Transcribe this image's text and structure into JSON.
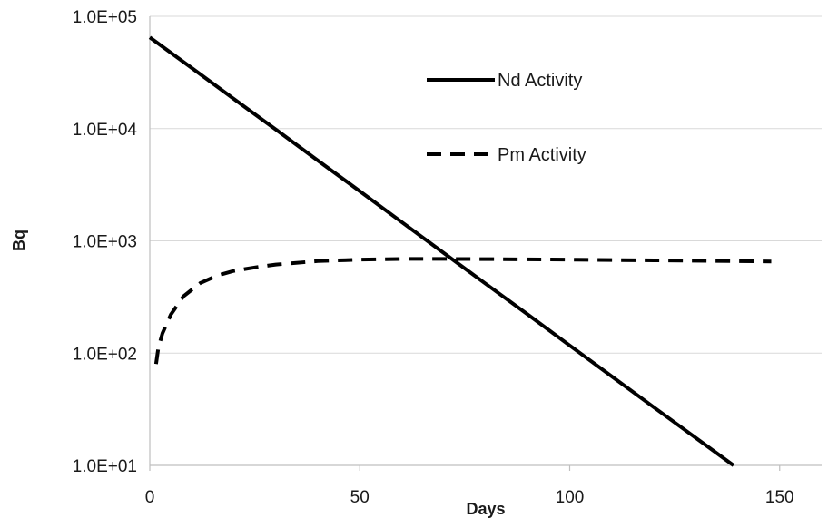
{
  "chart_data": {
    "type": "line",
    "title": "",
    "xlabel": "Days",
    "ylabel": "Bq",
    "xlim": [
      0,
      160
    ],
    "ylim": [
      10,
      100000
    ],
    "yscale": "log",
    "x_ticks": [
      0,
      50,
      100,
      150
    ],
    "x_tick_labels": [
      "0",
      "50",
      "100",
      "150"
    ],
    "y_ticks": [
      10,
      100,
      1000,
      10000,
      100000
    ],
    "y_tick_labels": [
      "1.0E+01",
      "1.0E+02",
      "1.0E+03",
      "1.0E+04",
      "1.0E+05"
    ],
    "grid": "horizontal",
    "legend_position": "top-right (inside)",
    "series": [
      {
        "name": "Nd Activity",
        "style": "solid",
        "color": "#000000",
        "x": [
          0,
          10,
          20,
          30,
          40,
          50,
          60,
          70,
          80,
          90,
          100,
          110,
          120,
          130,
          139
        ],
        "y": [
          65000,
          34600,
          18400,
          9800,
          5200,
          2770,
          1470,
          780,
          415,
          221,
          117,
          62,
          33,
          17.6,
          10
        ]
      },
      {
        "name": "Pm Activity",
        "style": "dashed",
        "color": "#000000",
        "x": [
          1.5,
          2,
          3,
          5,
          8,
          12,
          16,
          20,
          25,
          30,
          40,
          50,
          60,
          70,
          80,
          100,
          120,
          148
        ],
        "y": [
          80,
          110,
          150,
          220,
          320,
          420,
          490,
          540,
          580,
          615,
          660,
          680,
          690,
          690,
          688,
          680,
          670,
          655
        ]
      }
    ]
  }
}
